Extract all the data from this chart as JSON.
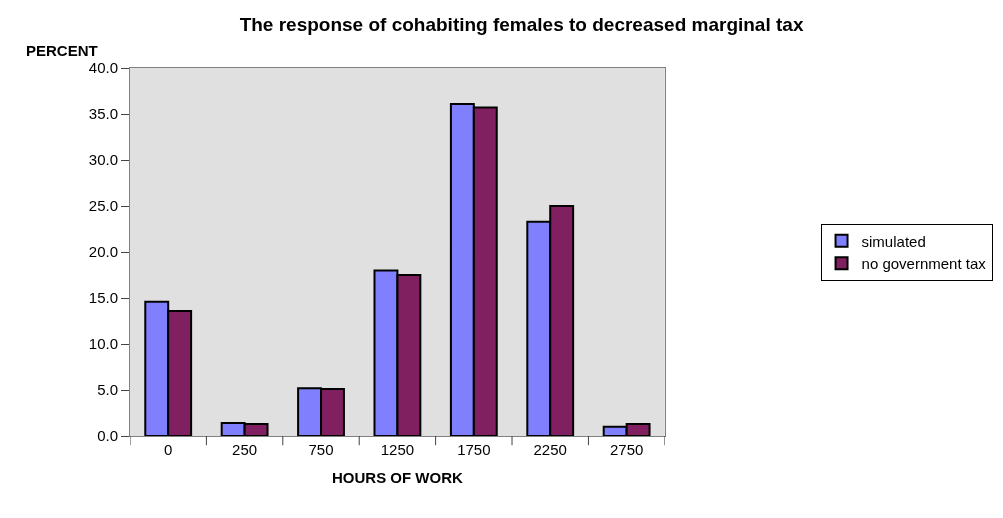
{
  "chart_data": {
    "type": "bar",
    "title": "The response of cohabiting females to decreased marginal tax",
    "ylabel": "PERCENT",
    "xlabel": "HOURS OF WORK",
    "categories": [
      "0",
      "250",
      "750",
      "1250",
      "1750",
      "2250",
      "2750"
    ],
    "series": [
      {
        "name": "simulated",
        "color": "#8080ff",
        "values": [
          14.6,
          1.4,
          5.2,
          18.0,
          36.1,
          23.3,
          1.0
        ]
      },
      {
        "name": "no government tax",
        "color": "#802060",
        "values": [
          13.6,
          1.3,
          5.1,
          17.5,
          35.7,
          25.0,
          1.3
        ]
      }
    ],
    "ylim": [
      0,
      40
    ],
    "yticks": [
      {
        "value": 0,
        "label": "0.0"
      },
      {
        "value": 5,
        "label": "5.0"
      },
      {
        "value": 10,
        "label": "10.0"
      },
      {
        "value": 15,
        "label": "15.0"
      },
      {
        "value": 20,
        "label": "20.0"
      },
      {
        "value": 25,
        "label": "25.0"
      },
      {
        "value": 30,
        "label": "30.0"
      },
      {
        "value": 35,
        "label": "35.0"
      },
      {
        "value": 40,
        "label": "40.0"
      }
    ],
    "grid": false,
    "legend": "right"
  }
}
